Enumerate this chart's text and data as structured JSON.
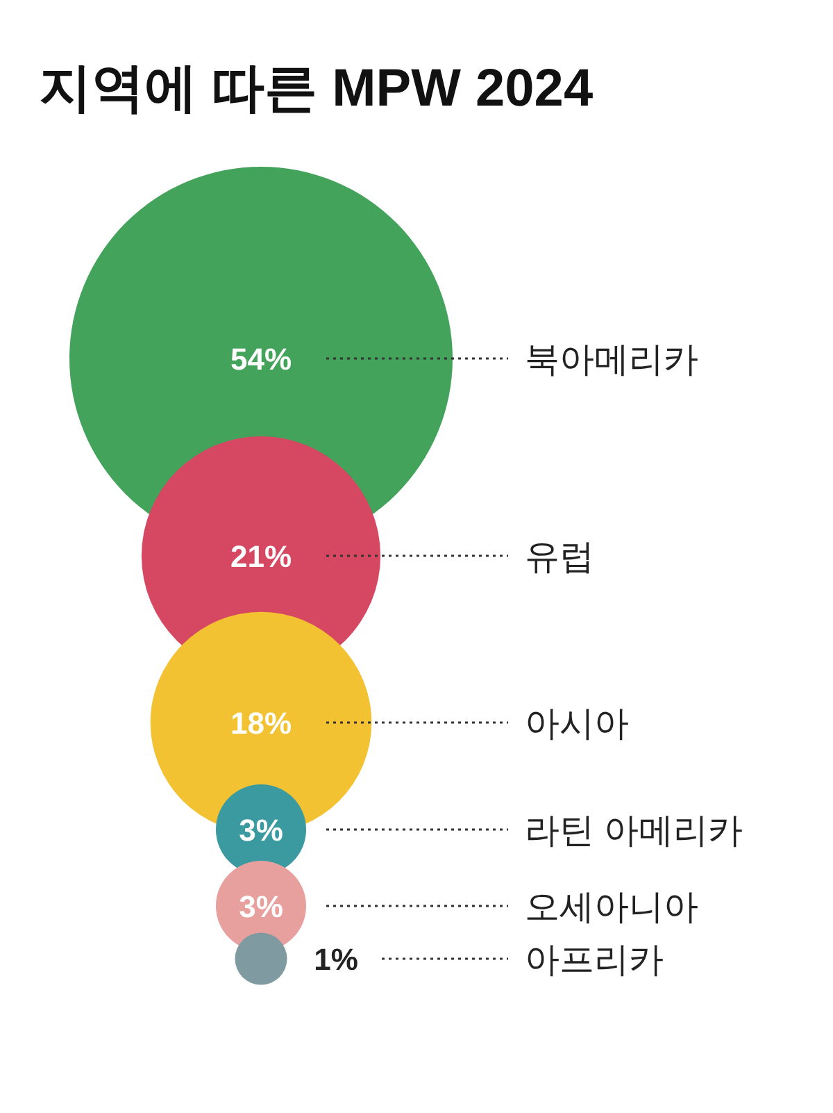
{
  "chart_data": {
    "type": "other",
    "title": "지역에 따른 MPW 2024",
    "categories": [
      "북아메리카",
      "유럽",
      "아시아",
      "라틴 아메리카",
      "오세아니아",
      "아프리카"
    ],
    "values": [
      54,
      21,
      18,
      3,
      3,
      1
    ],
    "colors": [
      "#43a35a",
      "#d64862",
      "#f2c232",
      "#3a9aa0",
      "#e8a09e",
      "#7f9aa0"
    ],
    "value_labels": [
      "54%",
      "21%",
      "18%",
      "3%",
      "3%",
      "1%"
    ]
  }
}
